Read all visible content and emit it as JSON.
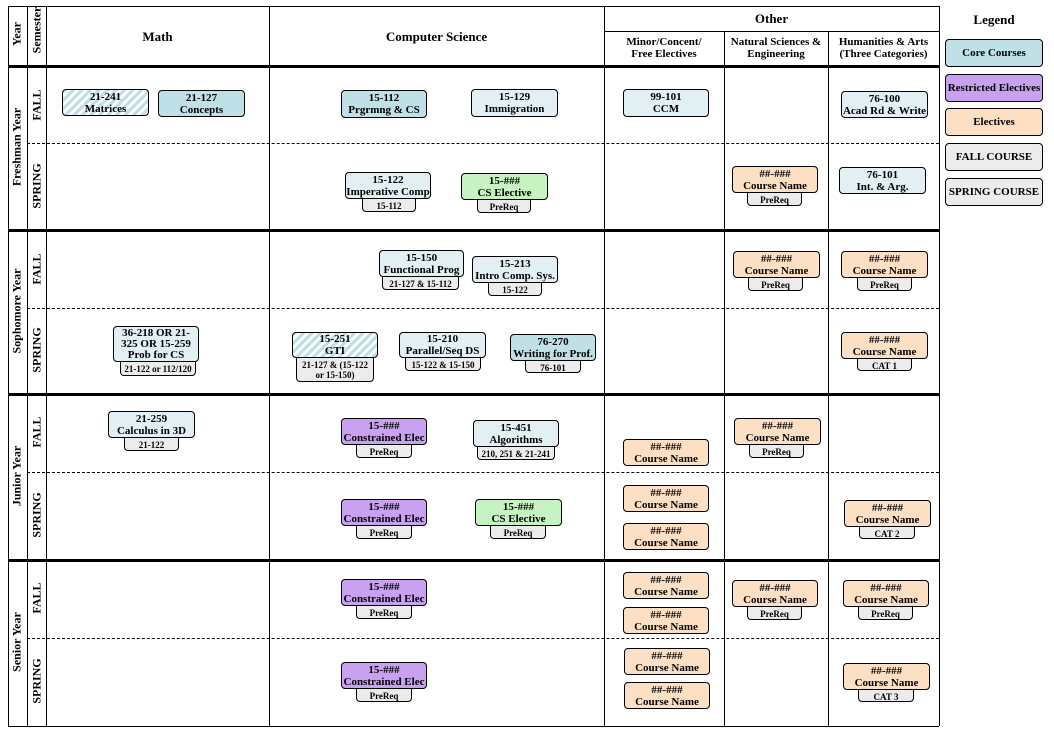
{
  "headers": {
    "year": "Year",
    "semester": "Semester",
    "math": "Math",
    "cs": "Computer Science",
    "other": "Other",
    "minor": "Minor/Concent/\nFree Electives",
    "natsci": "Natural Sciences &\nEngineering",
    "hum": "Humanities & Arts\n(Three Categories)",
    "legend": "Legend"
  },
  "years": [
    "Freshman Year",
    "Sophomore Year",
    "Junior Year",
    "Senior Year"
  ],
  "semesters": [
    "FALL",
    "SPRING",
    "FALL",
    "SPRING",
    "FALL",
    "SPRING",
    "FALL",
    "SPRING"
  ],
  "legend": [
    "Core Courses",
    "Restricted Electives",
    "Electives",
    "FALL COURSE",
    "SPRING COURSE"
  ],
  "legend_colors": {
    "core": "#bfe0e6",
    "restricted": "#c8a2f0",
    "electives": "#fde0c4",
    "fall": "#ececec",
    "spring": "#ececec"
  },
  "courses": [
    {
      "num": "21-241",
      "name": "Matrices",
      "prereq": ""
    },
    {
      "num": "21-127",
      "name": "Concepts",
      "prereq": ""
    },
    {
      "num": "15-112",
      "name": "Prgrmng & CS",
      "prereq": ""
    },
    {
      "num": "15-129",
      "name": "Immigration",
      "prereq": ""
    },
    {
      "num": "99-101",
      "name": "CCM",
      "prereq": ""
    },
    {
      "num": "76-100",
      "name": "Acad Rd & Write",
      "prereq": ""
    },
    {
      "num": "15-122",
      "name": "Imperative Comp",
      "prereq": "15-112"
    },
    {
      "num": "15-###",
      "name": "CS Elective",
      "prereq": "PreReq"
    },
    {
      "num": "##-###",
      "name": "Course Name",
      "prereq": "PreReq"
    },
    {
      "num": "76-101",
      "name": "Int. & Arg.",
      "prereq": ""
    },
    {
      "num": "15-150",
      "name": "Functional Prog",
      "prereq": "21-127 & 15-112"
    },
    {
      "num": "15-213",
      "name": "Intro Comp. Sys.",
      "prereq": "15-122"
    },
    {
      "num": "##-###",
      "name": "Course Name",
      "prereq": "PreReq"
    },
    {
      "num": "##-###",
      "name": "Course Name",
      "prereq": "PreReq"
    },
    {
      "num": "36-218 OR 21-325 OR 15-259",
      "name": "Prob for CS",
      "prereq": "21-122 or 112/120"
    },
    {
      "num": "15-251",
      "name": "GTI",
      "prereq": "21-127 & (15-122 or 15-150)"
    },
    {
      "num": "15-210",
      "name": "Parallel/Seq DS",
      "prereq": "15-122 & 15-150"
    },
    {
      "num": "76-270",
      "name": "Writing for Prof.",
      "prereq": "76-101"
    },
    {
      "num": "##-###",
      "name": "Course Name",
      "prereq": "CAT 1"
    },
    {
      "num": "21-259",
      "name": "Calculus in 3D",
      "prereq": "21-122"
    },
    {
      "num": "15-###",
      "name": "Constrained Elec",
      "prereq": "PreReq"
    },
    {
      "num": "15-451",
      "name": "Algorithms",
      "prereq": "210, 251 & 21-241"
    },
    {
      "num": "##-###",
      "name": "Course Name",
      "prereq": ""
    },
    {
      "num": "##-###",
      "name": "Course Name",
      "prereq": "PreReq"
    },
    {
      "num": "15-###",
      "name": "Constrained Elec",
      "prereq": "PreReq"
    },
    {
      "num": "15-###",
      "name": "CS Elective",
      "prereq": "PreReq"
    },
    {
      "num": "##-###",
      "name": "Course Name",
      "prereq": ""
    },
    {
      "num": "##-###",
      "name": "Course Name",
      "prereq": ""
    },
    {
      "num": "##-###",
      "name": "Course Name",
      "prereq": "CAT 2"
    },
    {
      "num": "15-###",
      "name": "Constrained Elec",
      "prereq": "PreReq"
    },
    {
      "num": "##-###",
      "name": "Course Name",
      "prereq": ""
    },
    {
      "num": "##-###",
      "name": "Course Name",
      "prereq": ""
    },
    {
      "num": "##-###",
      "name": "Course Name",
      "prereq": "PreReq"
    },
    {
      "num": "##-###",
      "name": "Course Name",
      "prereq": "PreReq"
    },
    {
      "num": "15-###",
      "name": "Constrained Elec",
      "prereq": "PreReq"
    },
    {
      "num": "##-###",
      "name": "Course Name",
      "prereq": ""
    },
    {
      "num": "##-###",
      "name": "Course Name",
      "prereq": ""
    },
    {
      "num": "##-###",
      "name": "Course Name",
      "prereq": "CAT 3"
    }
  ]
}
